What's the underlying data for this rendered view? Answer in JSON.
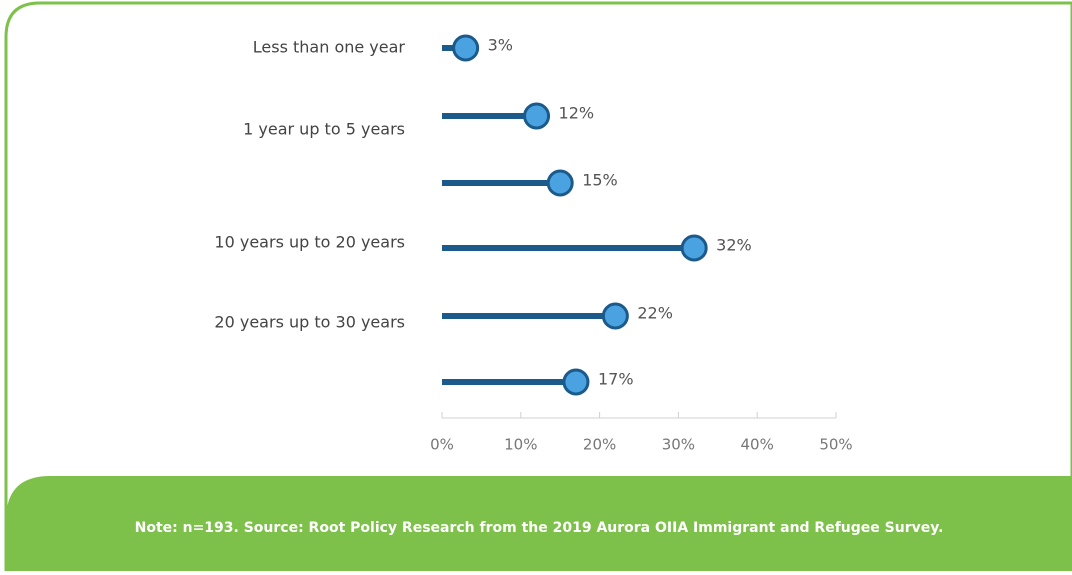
{
  "chart_data": {
    "type": "lollipop",
    "categories": [
      "Less than one year",
      "1 year up to 5 years",
      null,
      "10 years up to 20 years",
      "20 years up to 30 years",
      null
    ],
    "values": [
      3,
      12,
      15,
      32,
      22,
      17
    ],
    "value_labels": [
      "3%",
      "12%",
      "15%",
      "32%",
      "22%",
      "17%"
    ],
    "color": "#1b5a8a",
    "marker_color": "#4aa3e0",
    "xlim": [
      0,
      50
    ],
    "xticks": [
      {
        "value": 0,
        "label": "0%"
      },
      {
        "value": 10,
        "label": "10%"
      },
      {
        "value": 20,
        "label": "20%"
      },
      {
        "value": 30,
        "label": "30%"
      },
      {
        "value": 40,
        "label": "40%"
      },
      {
        "value": 50,
        "label": "50%"
      }
    ],
    "note": "Note: n=193. Source: Root Policy Research from the 2019 Aurora OIIA Immigrant and Refugee Survey."
  }
}
